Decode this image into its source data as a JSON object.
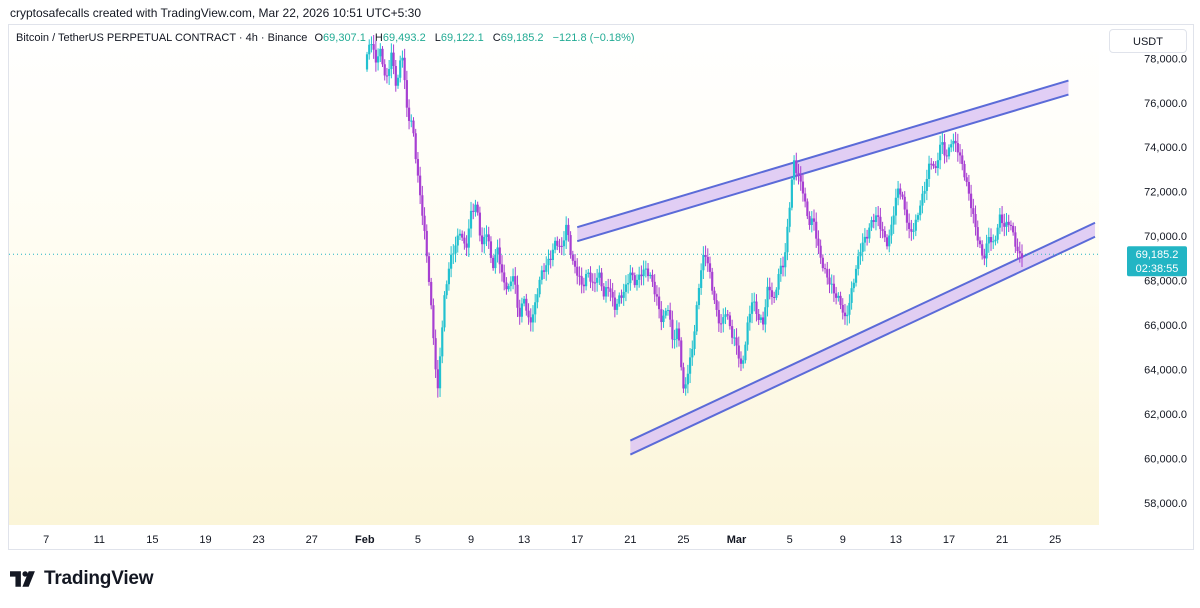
{
  "caption": "cryptosafecalls created with TradingView.com, Mar 22, 2026 10:51 UTC+5:30",
  "legend": {
    "symbol": "Bitcoin / TetherUS PERPETUAL CONTRACT · 4h · Binance",
    "o_label": "O",
    "o": "69,307.1",
    "h_label": "H",
    "h": "69,493.2",
    "l_label": "L",
    "l": "69,122.1",
    "c_label": "C",
    "c": "69,185.2",
    "change": "−121.8 (−0.18%)"
  },
  "currency_button": "USDT",
  "price_tag": {
    "price": "69,185.2",
    "countdown": "02:38:55",
    "color": "#22b5c4"
  },
  "brand": {
    "name": "TradingView"
  },
  "colors": {
    "up": "#22c1d0",
    "down": "#a73fd2",
    "channel_line": "#5b6bd8",
    "channel_fill": "#dcc6f3"
  },
  "chart_data": {
    "type": "candlestick",
    "timeframe": "4h",
    "ylim": [
      57000,
      79500
    ],
    "y_ticks": [
      58000,
      60000,
      62000,
      64000,
      66000,
      68000,
      70000,
      72000,
      74000,
      76000,
      78000
    ],
    "y_tick_labels": [
      "58,000.0",
      "60,000.0",
      "62,000.0",
      "64,000.0",
      "66,000.0",
      "68,000.0",
      "70,000.0",
      "72,000.0",
      "74,000.0",
      "76,000.0",
      "78,000.0"
    ],
    "x_ticks": [
      {
        "label": "7",
        "day": 7
      },
      {
        "label": "11",
        "day": 11
      },
      {
        "label": "15",
        "day": 15
      },
      {
        "label": "19",
        "day": 19
      },
      {
        "label": "23",
        "day": 23
      },
      {
        "label": "27",
        "day": 27
      },
      {
        "label": "Feb",
        "day": 31,
        "bold": true
      },
      {
        "label": "5",
        "day": 35
      },
      {
        "label": "9",
        "day": 39
      },
      {
        "label": "13",
        "day": 43
      },
      {
        "label": "17",
        "day": 47
      },
      {
        "label": "21",
        "day": 51
      },
      {
        "label": "25",
        "day": 55
      },
      {
        "label": "Mar",
        "day": 59,
        "bold": true
      },
      {
        "label": "5",
        "day": 63
      },
      {
        "label": "9",
        "day": 67
      },
      {
        "label": "13",
        "day": 71
      },
      {
        "label": "17",
        "day": 75
      },
      {
        "label": "21",
        "day": 79
      },
      {
        "label": "25",
        "day": 83
      }
    ],
    "x_range_days": [
      4.2,
      86.3
    ],
    "last_price": 69185.2,
    "price_path": [
      [
        31.0,
        77500
      ],
      [
        31.4,
        78800
      ],
      [
        31.8,
        77600
      ],
      [
        32.2,
        78200
      ],
      [
        32.6,
        77000
      ],
      [
        33.0,
        78500
      ],
      [
        33.4,
        76800
      ],
      [
        33.8,
        78300
      ],
      [
        34.2,
        75200
      ],
      [
        34.6,
        74800
      ],
      [
        35.0,
        72700
      ],
      [
        35.4,
        71000
      ],
      [
        35.8,
        68500
      ],
      [
        36.1,
        66000
      ],
      [
        36.3,
        64200
      ],
      [
        36.5,
        62800
      ],
      [
        36.7,
        64700
      ],
      [
        37.0,
        67000
      ],
      [
        37.4,
        68900
      ],
      [
        37.8,
        69800
      ],
      [
        38.2,
        70500
      ],
      [
        38.6,
        69300
      ],
      [
        39.0,
        70800
      ],
      [
        39.4,
        71200
      ],
      [
        39.8,
        69500
      ],
      [
        40.2,
        70500
      ],
      [
        40.6,
        68800
      ],
      [
        41.0,
        69500
      ],
      [
        41.4,
        67800
      ],
      [
        41.8,
        67300
      ],
      [
        42.2,
        68300
      ],
      [
        42.6,
        66500
      ],
      [
        43.0,
        67500
      ],
      [
        43.4,
        66100
      ],
      [
        43.8,
        66600
      ],
      [
        44.2,
        67900
      ],
      [
        44.6,
        68500
      ],
      [
        45.0,
        69200
      ],
      [
        45.4,
        70100
      ],
      [
        45.8,
        69500
      ],
      [
        46.2,
        70400
      ],
      [
        46.6,
        68600
      ],
      [
        47.0,
        68200
      ],
      [
        47.4,
        67800
      ],
      [
        47.8,
        68700
      ],
      [
        48.2,
        67900
      ],
      [
        48.6,
        68300
      ],
      [
        49.0,
        67100
      ],
      [
        49.4,
        67600
      ],
      [
        49.8,
        66800
      ],
      [
        50.2,
        67500
      ],
      [
        50.6,
        67800
      ],
      [
        51.0,
        68300
      ],
      [
        51.4,
        67600
      ],
      [
        51.8,
        68100
      ],
      [
        52.2,
        68500
      ],
      [
        52.6,
        68300
      ],
      [
        53.0,
        67400
      ],
      [
        53.4,
        66100
      ],
      [
        53.8,
        66700
      ],
      [
        54.2,
        65000
      ],
      [
        54.6,
        65800
      ],
      [
        55.0,
        63200
      ],
      [
        55.4,
        64300
      ],
      [
        55.8,
        65600
      ],
      [
        56.2,
        67800
      ],
      [
        56.6,
        69100
      ],
      [
        57.0,
        68200
      ],
      [
        57.4,
        67000
      ],
      [
        57.8,
        66200
      ],
      [
        58.2,
        66800
      ],
      [
        58.6,
        65500
      ],
      [
        59.0,
        64800
      ],
      [
        59.4,
        63800
      ],
      [
        59.8,
        66000
      ],
      [
        60.2,
        67500
      ],
      [
        60.6,
        66500
      ],
      [
        61.0,
        66000
      ],
      [
        61.4,
        67600
      ],
      [
        61.8,
        66800
      ],
      [
        62.2,
        68500
      ],
      [
        62.6,
        69100
      ],
      [
        63.0,
        71600
      ],
      [
        63.3,
        73400
      ],
      [
        63.6,
        72600
      ],
      [
        64.0,
        71800
      ],
      [
        64.4,
        70500
      ],
      [
        64.8,
        70900
      ],
      [
        65.2,
        69600
      ],
      [
        65.6,
        68600
      ],
      [
        66.0,
        67800
      ],
      [
        66.4,
        67100
      ],
      [
        66.8,
        66900
      ],
      [
        67.2,
        66300
      ],
      [
        67.6,
        67600
      ],
      [
        68.0,
        68700
      ],
      [
        68.4,
        69500
      ],
      [
        68.8,
        69700
      ],
      [
        69.2,
        70500
      ],
      [
        69.6,
        71000
      ],
      [
        70.0,
        70400
      ],
      [
        70.4,
        69800
      ],
      [
        70.8,
        70900
      ],
      [
        71.2,
        72000
      ],
      [
        71.6,
        71200
      ],
      [
        72.0,
        70200
      ],
      [
        72.4,
        70600
      ],
      [
        72.8,
        71600
      ],
      [
        73.2,
        72200
      ],
      [
        73.6,
        73200
      ],
      [
        74.0,
        72700
      ],
      [
        74.4,
        74300
      ],
      [
        74.8,
        73700
      ],
      [
        75.2,
        74600
      ],
      [
        75.6,
        74100
      ],
      [
        76.0,
        73000
      ],
      [
        76.4,
        71900
      ],
      [
        76.8,
        70900
      ],
      [
        77.2,
        70000
      ],
      [
        77.6,
        69200
      ],
      [
        78.0,
        70100
      ],
      [
        78.4,
        69400
      ],
      [
        78.8,
        70600
      ],
      [
        79.2,
        70300
      ],
      [
        79.6,
        70800
      ],
      [
        80.0,
        69900
      ],
      [
        80.3,
        69300
      ],
      [
        80.6,
        69185
      ]
    ],
    "channel": {
      "upper_band": [
        [
          47.0,
          70400
        ],
        [
          84.0,
          77000
        ]
      ],
      "lower_band": [
        [
          51.0,
          60800
        ],
        [
          86.0,
          70600
        ]
      ]
    }
  }
}
